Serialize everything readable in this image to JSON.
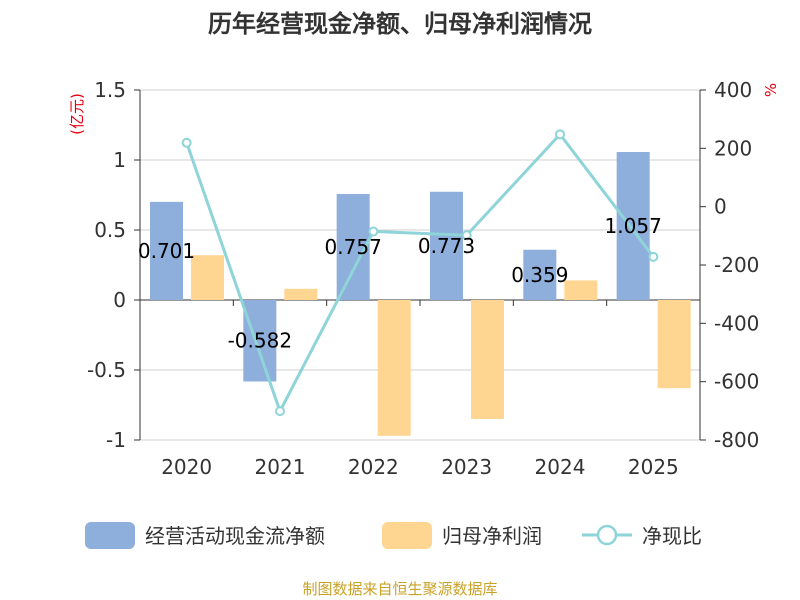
{
  "chart_data": {
    "type": "bar+line",
    "title": "历年经营现金净额、归母净利润情况",
    "categories": [
      "2020",
      "2021",
      "2022",
      "2023",
      "2024",
      "2025"
    ],
    "series": [
      {
        "name": "经营活动现金流净额",
        "type": "bar",
        "axis": "left",
        "color": "#8eaedb",
        "values": [
          0.701,
          -0.582,
          0.757,
          0.773,
          0.359,
          1.057
        ]
      },
      {
        "name": "归母净利润",
        "type": "bar",
        "axis": "left",
        "color": "#ffd592",
        "values": [
          0.32,
          0.08,
          -0.97,
          -0.85,
          0.14,
          -0.63
        ]
      },
      {
        "name": "净现比",
        "type": "line",
        "axis": "right",
        "color": "#8ed4d8",
        "values": [
          219,
          -701,
          -85,
          -98,
          248,
          -172
        ]
      }
    ],
    "data_labels": [
      "0.701",
      "-0.582",
      "0.757",
      "0.773",
      "0.359",
      "1.057"
    ],
    "y_left": {
      "unit": "(亿元)",
      "ylim": [
        -1,
        1.5
      ],
      "ticks": [
        1.5,
        1,
        0.5,
        0,
        -0.5,
        -1
      ],
      "tick_labels": [
        "1.5",
        "1",
        "0.5",
        "0",
        "-0.5",
        "-1"
      ]
    },
    "y_right": {
      "unit": "%",
      "ylim": [
        -800,
        400
      ],
      "ticks": [
        400,
        200,
        0,
        -200,
        -400,
        -600,
        -800
      ],
      "tick_labels": [
        "400",
        "200",
        "0",
        "-200",
        "-400",
        "-600",
        "-800"
      ]
    },
    "grid": true,
    "legend_position": "bottom"
  },
  "source_text": "制图数据来自恒生聚源数据库"
}
